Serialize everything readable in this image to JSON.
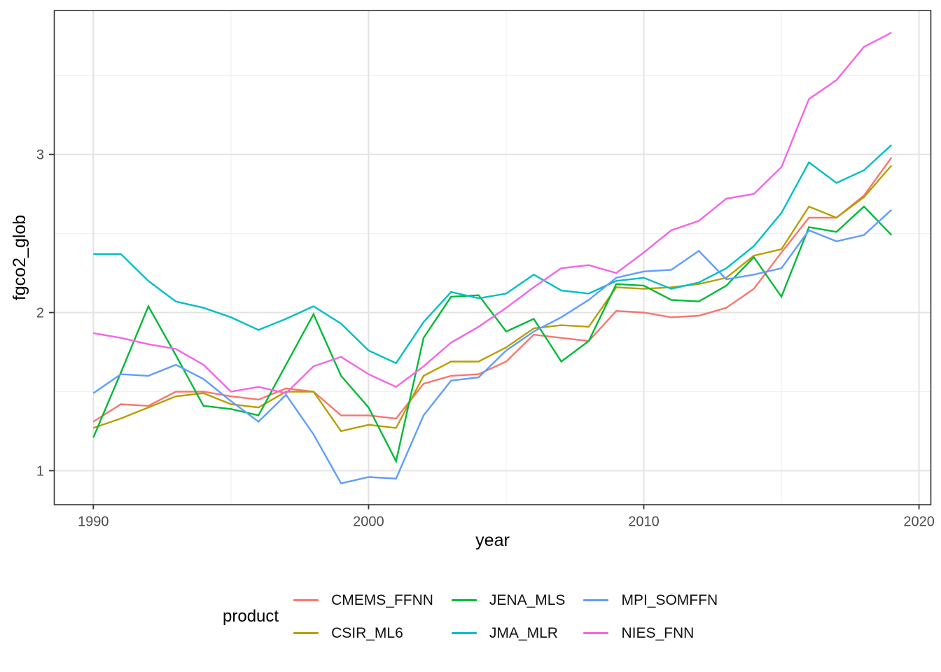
{
  "chart_data": {
    "type": "line",
    "title": "",
    "xlabel": "year",
    "ylabel": "fgco2_glob",
    "grid": "on",
    "panel_border": true,
    "x": [
      1990,
      1991,
      1992,
      1993,
      1994,
      1995,
      1996,
      1997,
      1998,
      1999,
      2000,
      2001,
      2002,
      2003,
      2004,
      2005,
      2006,
      2007,
      2008,
      2009,
      2010,
      2011,
      2012,
      2013,
      2014,
      2015,
      2016,
      2017,
      2018,
      2019
    ],
    "series": [
      {
        "name": "CMEMS_FFNN",
        "color": "#F8766D",
        "values": [
          1.31,
          1.42,
          1.41,
          1.5,
          1.5,
          1.47,
          1.45,
          1.52,
          1.5,
          1.35,
          1.35,
          1.33,
          1.55,
          1.6,
          1.61,
          1.69,
          1.86,
          1.84,
          1.82,
          2.01,
          2.0,
          1.97,
          1.98,
          2.03,
          2.15,
          2.38,
          2.6,
          2.6,
          2.74,
          2.98
        ]
      },
      {
        "name": "CSIR_ML6",
        "color": "#B79F00",
        "values": [
          1.27,
          1.33,
          1.4,
          1.47,
          1.49,
          1.42,
          1.4,
          1.5,
          1.5,
          1.25,
          1.29,
          1.27,
          1.6,
          1.69,
          1.69,
          1.78,
          1.9,
          1.92,
          1.91,
          2.16,
          2.15,
          2.16,
          2.18,
          2.22,
          2.36,
          2.4,
          2.67,
          2.6,
          2.73,
          2.93
        ]
      },
      {
        "name": "JENA_MLS",
        "color": "#00BA38",
        "values": [
          1.21,
          1.62,
          2.04,
          1.73,
          1.41,
          1.39,
          1.35,
          1.67,
          1.99,
          1.6,
          1.4,
          1.06,
          1.84,
          2.1,
          2.11,
          1.88,
          1.96,
          1.69,
          1.82,
          2.18,
          2.17,
          2.08,
          2.07,
          2.17,
          2.35,
          2.1,
          2.54,
          2.51,
          2.67,
          2.49
        ]
      },
      {
        "name": "JMA_MLR",
        "color": "#00BFC4",
        "values": [
          2.37,
          2.37,
          2.2,
          2.07,
          2.03,
          1.97,
          1.89,
          1.96,
          2.04,
          1.93,
          1.76,
          1.68,
          1.94,
          2.13,
          2.09,
          2.12,
          2.24,
          2.14,
          2.12,
          2.2,
          2.22,
          2.15,
          2.19,
          2.28,
          2.42,
          2.63,
          2.95,
          2.82,
          2.9,
          3.06
        ]
      },
      {
        "name": "MPI_SOMFFN",
        "color": "#619CFF",
        "values": [
          1.49,
          1.61,
          1.6,
          1.67,
          1.58,
          1.44,
          1.31,
          1.48,
          1.23,
          0.92,
          0.96,
          0.95,
          1.35,
          1.57,
          1.59,
          1.76,
          1.88,
          1.97,
          2.08,
          2.22,
          2.26,
          2.27,
          2.39,
          2.21,
          2.24,
          2.28,
          2.52,
          2.45,
          2.49,
          2.65
        ]
      },
      {
        "name": "NIES_FNN",
        "color": "#F564E3",
        "values": [
          1.87,
          1.84,
          1.8,
          1.77,
          1.67,
          1.5,
          1.53,
          1.49,
          1.66,
          1.72,
          1.61,
          1.53,
          1.66,
          1.81,
          1.91,
          2.03,
          2.16,
          2.28,
          2.3,
          2.25,
          2.38,
          2.52,
          2.58,
          2.72,
          2.75,
          2.92,
          3.35,
          3.47,
          3.68,
          3.77
        ]
      }
    ],
    "x_ticks": [
      1990,
      2000,
      2010,
      2020
    ],
    "x_minor": [
      1995,
      2005,
      2015
    ],
    "y_ticks": [
      1,
      2,
      3
    ],
    "y_minor": [
      1.5,
      2.5,
      3.5
    ],
    "xlim": [
      1988.58,
      2020.43
    ],
    "ylim": [
      0.785,
      3.91
    ],
    "legend": {
      "title": "product",
      "position": "bottom"
    },
    "colors": {
      "grid_major": "#E3E3E3",
      "grid_minor": "#F0F0F0",
      "panel_border": "#343434",
      "tick": "#333333",
      "tick_label": "#4D4D4D",
      "background": "#FFFFFF"
    }
  }
}
